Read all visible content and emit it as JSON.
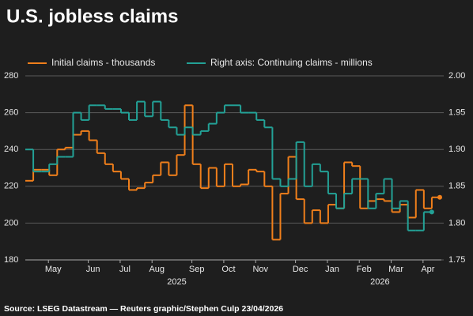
{
  "chart_data": {
    "type": "step",
    "title": "U.S. jobless claims",
    "source": "Source: LSEG Datastream — Reuters graphic/Stephen Culp 23/04/2026",
    "categories": [
      null,
      null,
      null,
      "May",
      null,
      null,
      null,
      null,
      "Jun",
      null,
      null,
      null,
      "Jul",
      null,
      null,
      null,
      "Aug",
      null,
      null,
      null,
      null,
      "Sep",
      null,
      null,
      null,
      "Oct",
      null,
      null,
      null,
      "Nov",
      null,
      null,
      null,
      null,
      "Dec",
      null,
      null,
      null,
      "Jan",
      null,
      null,
      null,
      "Feb",
      null,
      null,
      null,
      "Mar",
      null,
      null,
      null,
      "Apr",
      null
    ],
    "x_group_labels": [
      "2025",
      "2026"
    ],
    "series": [
      {
        "name": "Initial claims - thousands",
        "color": "#f07f1b",
        "values": [
          223,
          229,
          229,
          226,
          240,
          241,
          248,
          250,
          245,
          238,
          232,
          228,
          224,
          218,
          219,
          222,
          226,
          233,
          226,
          237,
          264,
          232,
          219,
          230,
          220,
          232,
          220,
          221,
          229,
          228,
          220,
          191,
          216,
          236,
          213,
          200,
          207,
          200,
          210,
          208,
          233,
          231,
          208,
          212,
          213,
          212,
          206,
          210,
          203,
          218,
          208,
          214
        ]
      },
      {
        "name": "Right axis: Continuing claims - millions",
        "color": "#23a196",
        "axis": "y2",
        "values": [
          1.9,
          1.87,
          1.87,
          1.88,
          1.89,
          1.89,
          1.95,
          1.94,
          1.96,
          1.96,
          1.955,
          1.955,
          1.95,
          1.94,
          1.965,
          1.945,
          1.965,
          1.94,
          1.93,
          1.92,
          1.93,
          1.92,
          1.925,
          1.935,
          1.95,
          1.96,
          1.96,
          1.95,
          1.95,
          1.94,
          1.93,
          1.86,
          1.85,
          1.86,
          1.91,
          1.85,
          1.88,
          1.87,
          1.84,
          1.82,
          1.84,
          1.86,
          1.86,
          1.82,
          1.84,
          1.86,
          1.82,
          1.83,
          1.79,
          1.79,
          1.815,
          null
        ]
      }
    ],
    "ylim": [
      180,
      280
    ],
    "yticks": [
      180,
      200,
      220,
      240,
      260,
      280
    ],
    "y2lim": [
      1.75,
      2.0
    ],
    "y2ticks": [
      {
        "value": 1.75,
        "label": "1.75"
      },
      {
        "value": 1.8,
        "label": "1.80"
      },
      {
        "value": 1.85,
        "label": "1.85"
      },
      {
        "value": 1.9,
        "label": "1.90"
      },
      {
        "value": 1.95,
        "label": "1.95"
      },
      {
        "value": 2.0,
        "label": "2.00"
      }
    ],
    "grid": true
  }
}
